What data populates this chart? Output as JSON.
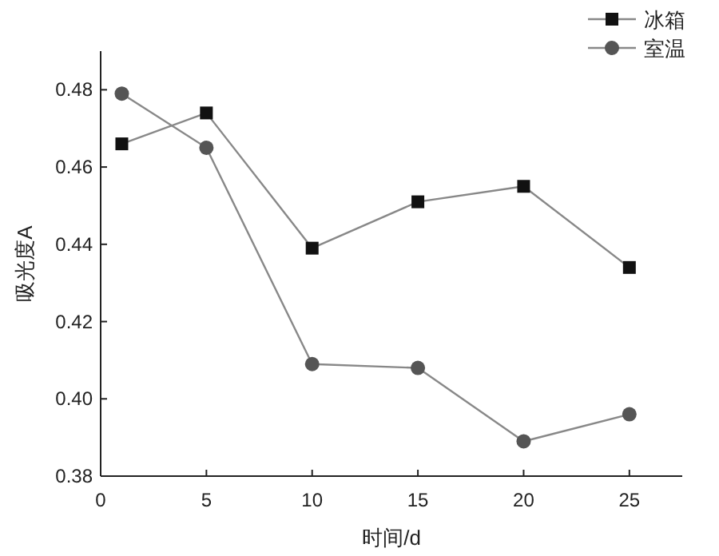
{
  "chart_data": {
    "type": "line",
    "xlabel": "时间/d",
    "ylabel": "吸光度A",
    "x": [
      1,
      5,
      10,
      15,
      20,
      25
    ],
    "xlim": [
      0,
      27.5
    ],
    "xticks": [
      0,
      5,
      10,
      15,
      20,
      25
    ],
    "ylim": [
      0.38,
      0.49
    ],
    "yticks": [
      {
        "value": 0.38,
        "label": "0.38"
      },
      {
        "value": 0.4,
        "label": "0.40"
      },
      {
        "value": 0.42,
        "label": "0.42"
      },
      {
        "value": 0.44,
        "label": "0.44"
      },
      {
        "value": 0.46,
        "label": "0.46"
      },
      {
        "value": 0.48,
        "label": "0.48"
      }
    ],
    "legend": "top right",
    "series": [
      {
        "name": "冰箱",
        "color": "#111111",
        "marker": "square",
        "values": [
          0.466,
          0.474,
          0.439,
          0.451,
          0.455,
          0.434
        ]
      },
      {
        "name": "室温",
        "color": "#555555",
        "marker": "circle",
        "values": [
          0.479,
          0.465,
          0.409,
          0.408,
          0.389,
          0.396
        ]
      }
    ]
  }
}
